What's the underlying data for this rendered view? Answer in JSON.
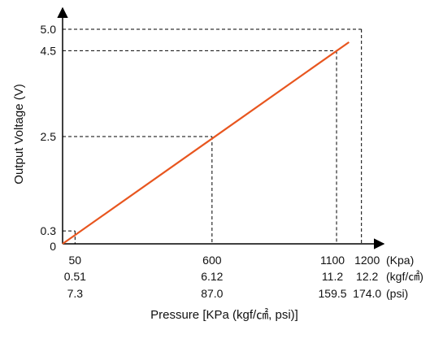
{
  "chart_data": {
    "type": "line",
    "title": "",
    "xlabel": "Pressure [KPa (kgf/㎠, psi)]",
    "ylabel": "Output Voltage (V)",
    "xlim": [
      0,
      1300
    ],
    "ylim": [
      0,
      5.3
    ],
    "grid": false,
    "legend": "none",
    "line_color": "#e8561f",
    "series": [
      {
        "name": "",
        "x": [
          0,
          1150
        ],
        "y": [
          0.0,
          4.7
        ]
      }
    ],
    "y_ticks": [
      {
        "value": 0,
        "label": "0"
      },
      {
        "value": 0.3,
        "label": "0.3"
      },
      {
        "value": 2.5,
        "label": "2.5"
      },
      {
        "value": 4.5,
        "label": "4.5"
      },
      {
        "value": 5.0,
        "label": "5.0"
      }
    ],
    "x_ticks": [
      {
        "value": 50,
        "kpa": "50",
        "kgf": "0.51",
        "psi": "7.3"
      },
      {
        "value": 600,
        "kpa": "600",
        "kgf": "6.12",
        "psi": "87.0"
      },
      {
        "value": 1100,
        "kpa": "1100",
        "kgf": "11.2",
        "psi": "159.5"
      },
      {
        "value": 1200,
        "kpa": "1200",
        "kgf": "12.2",
        "psi": "174.0"
      }
    ],
    "unit_labels": {
      "kpa": "(Kpa)",
      "kgf": "(kgf/㎠)",
      "psi": "(psi)"
    },
    "reference_points": [
      {
        "x": 50,
        "y": 0.3
      },
      {
        "x": 600,
        "y": 2.5
      },
      {
        "x": 1100,
        "y": 4.5
      },
      {
        "x": 1200,
        "y": 5.0
      }
    ]
  }
}
